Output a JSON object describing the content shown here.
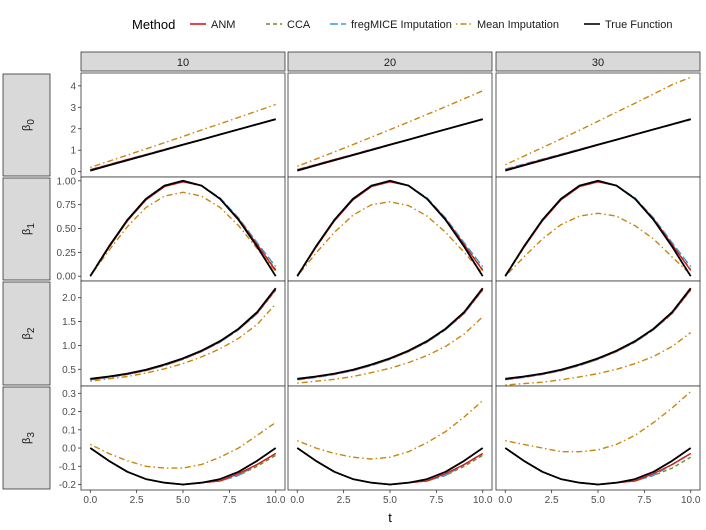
{
  "chart_data": {
    "type": "line",
    "legend": {
      "title": "Method",
      "position": "top",
      "entries": [
        {
          "name": "ANM",
          "color": "#d7191c",
          "dash": "solid"
        },
        {
          "name": "CCA",
          "color": "#6b8e23",
          "dash": "dashed"
        },
        {
          "name": "fregMICE Imputation",
          "color": "#3b9bd6",
          "dash": "longdash"
        },
        {
          "name": "Mean Imputation",
          "color": "#c8860d",
          "dash": "dotdash"
        },
        {
          "name": "True Function",
          "color": "#000000",
          "dash": "solid"
        }
      ]
    },
    "columns": [
      "10",
      "20",
      "30"
    ],
    "rows": [
      {
        "label": "β",
        "sub": "0",
        "ylim": [
          -0.25,
          4.6
        ],
        "yticks": [
          0,
          1,
          2,
          3,
          4
        ],
        "ytick_labels": [
          "0",
          "1",
          "2",
          "3",
          "4"
        ]
      },
      {
        "label": "β",
        "sub": "1",
        "ylim": [
          -0.05,
          1.04
        ],
        "yticks": [
          0,
          0.25,
          0.5,
          0.75,
          1.0
        ],
        "ytick_labels": [
          "0.00",
          "0.25",
          "0.50",
          "0.75",
          "1.00"
        ]
      },
      {
        "label": "β",
        "sub": "2",
        "ylim": [
          0.15,
          2.35
        ],
        "yticks": [
          0.5,
          1.0,
          1.5,
          2.0
        ],
        "ytick_labels": [
          "0.5",
          "1.0",
          "1.5",
          "2.0"
        ]
      },
      {
        "label": "β",
        "sub": "3",
        "ylim": [
          -0.23,
          0.34
        ],
        "yticks": [
          -0.2,
          -0.1,
          0.0,
          0.1,
          0.2,
          0.3
        ],
        "ytick_labels": [
          "-0.2",
          "-0.1",
          "0.0",
          "0.1",
          "0.2",
          "0.3"
        ]
      }
    ],
    "xlabel": "t",
    "xlim": [
      -0.5,
      10.5
    ],
    "xticks": [
      0,
      2.5,
      5,
      7.5,
      10
    ],
    "xtick_labels": [
      "0.0",
      "2.5",
      "5.0",
      "7.5",
      "10.0"
    ],
    "t": [
      0,
      1,
      2,
      3,
      4,
      5,
      6,
      7,
      8,
      9,
      10
    ],
    "series": [
      [
        {
          "True Function": [
            0.05,
            0.29,
            0.53,
            0.77,
            1.01,
            1.25,
            1.49,
            1.73,
            1.97,
            2.21,
            2.45
          ],
          "ANM": [
            0.08,
            0.32,
            0.56,
            0.79,
            1.03,
            1.27,
            1.5,
            1.74,
            1.97,
            2.2,
            2.43
          ],
          "CCA": [
            0.07,
            0.31,
            0.55,
            0.79,
            1.02,
            1.26,
            1.5,
            1.73,
            1.97,
            2.2,
            2.44
          ],
          "fregMICE Imputation": [
            0.1,
            0.33,
            0.57,
            0.8,
            1.04,
            1.27,
            1.5,
            1.74,
            1.97,
            2.21,
            2.44
          ],
          "Mean Imputation": [
            0.2,
            0.48,
            0.77,
            1.06,
            1.35,
            1.64,
            1.94,
            2.23,
            2.53,
            2.83,
            3.13
          ]
        },
        {
          "True Function": [
            0.05,
            0.29,
            0.53,
            0.77,
            1.01,
            1.25,
            1.49,
            1.73,
            1.97,
            2.21,
            2.45
          ],
          "ANM": [
            0.08,
            0.32,
            0.56,
            0.79,
            1.03,
            1.27,
            1.5,
            1.74,
            1.97,
            2.2,
            2.43
          ],
          "CCA": [
            0.07,
            0.31,
            0.55,
            0.79,
            1.02,
            1.26,
            1.5,
            1.73,
            1.97,
            2.2,
            2.44
          ],
          "fregMICE Imputation": [
            0.1,
            0.33,
            0.57,
            0.8,
            1.04,
            1.27,
            1.5,
            1.74,
            1.97,
            2.21,
            2.44
          ],
          "Mean Imputation": [
            0.25,
            0.58,
            0.92,
            1.26,
            1.61,
            1.96,
            2.31,
            2.67,
            3.03,
            3.4,
            3.77
          ]
        },
        {
          "True Function": [
            0.05,
            0.29,
            0.53,
            0.77,
            1.01,
            1.25,
            1.49,
            1.73,
            1.97,
            2.21,
            2.45
          ],
          "ANM": [
            0.08,
            0.32,
            0.56,
            0.79,
            1.03,
            1.27,
            1.5,
            1.74,
            1.97,
            2.2,
            2.43
          ],
          "CCA": [
            0.07,
            0.31,
            0.55,
            0.79,
            1.02,
            1.26,
            1.5,
            1.73,
            1.97,
            2.2,
            2.44
          ],
          "fregMICE Imputation": [
            0.12,
            0.35,
            0.58,
            0.81,
            1.04,
            1.27,
            1.5,
            1.73,
            1.96,
            2.19,
            2.42
          ],
          "Mean Imputation": [
            0.32,
            0.72,
            1.12,
            1.52,
            1.93,
            2.35,
            2.77,
            3.19,
            3.62,
            4.06,
            4.4
          ]
        }
      ],
      [
        {
          "True Function": [
            0.0,
            0.31,
            0.59,
            0.81,
            0.95,
            1.0,
            0.95,
            0.81,
            0.59,
            0.31,
            0.0
          ],
          "ANM": [
            0.0,
            0.3,
            0.58,
            0.8,
            0.94,
            0.99,
            0.95,
            0.81,
            0.6,
            0.33,
            0.06
          ],
          "CCA": [
            0.0,
            0.3,
            0.58,
            0.8,
            0.94,
            0.99,
            0.95,
            0.81,
            0.6,
            0.33,
            0.07
          ],
          "fregMICE Imputation": [
            0.01,
            0.31,
            0.59,
            0.8,
            0.94,
            0.99,
            0.95,
            0.82,
            0.61,
            0.35,
            0.1
          ],
          "Mean Imputation": [
            0.0,
            0.27,
            0.52,
            0.72,
            0.84,
            0.88,
            0.84,
            0.72,
            0.53,
            0.29,
            0.05
          ]
        },
        {
          "True Function": [
            0.0,
            0.31,
            0.59,
            0.81,
            0.95,
            1.0,
            0.95,
            0.81,
            0.59,
            0.31,
            0.0
          ],
          "ANM": [
            0.0,
            0.3,
            0.58,
            0.8,
            0.94,
            0.99,
            0.95,
            0.81,
            0.6,
            0.33,
            0.06
          ],
          "CCA": [
            0.0,
            0.3,
            0.58,
            0.8,
            0.94,
            0.99,
            0.95,
            0.81,
            0.6,
            0.33,
            0.07
          ],
          "fregMICE Imputation": [
            0.01,
            0.31,
            0.59,
            0.8,
            0.94,
            0.99,
            0.95,
            0.82,
            0.61,
            0.35,
            0.1
          ],
          "Mean Imputation": [
            0.0,
            0.24,
            0.46,
            0.64,
            0.75,
            0.78,
            0.74,
            0.63,
            0.46,
            0.25,
            0.03
          ]
        },
        {
          "True Function": [
            0.0,
            0.31,
            0.59,
            0.81,
            0.95,
            1.0,
            0.95,
            0.81,
            0.59,
            0.31,
            0.0
          ],
          "ANM": [
            0.0,
            0.3,
            0.58,
            0.8,
            0.94,
            0.99,
            0.95,
            0.81,
            0.6,
            0.33,
            0.06
          ],
          "CCA": [
            0.0,
            0.3,
            0.58,
            0.8,
            0.94,
            0.99,
            0.95,
            0.81,
            0.6,
            0.33,
            0.07
          ],
          "fregMICE Imputation": [
            0.01,
            0.31,
            0.59,
            0.8,
            0.94,
            0.99,
            0.95,
            0.82,
            0.61,
            0.35,
            0.1
          ],
          "Mean Imputation": [
            0.0,
            0.2,
            0.39,
            0.54,
            0.63,
            0.66,
            0.63,
            0.53,
            0.39,
            0.2,
            0.02
          ]
        }
      ],
      [
        {
          "True Function": [
            0.3,
            0.35,
            0.41,
            0.49,
            0.6,
            0.73,
            0.89,
            1.09,
            1.35,
            1.7,
            2.2
          ],
          "ANM": [
            0.29,
            0.34,
            0.4,
            0.48,
            0.59,
            0.72,
            0.88,
            1.08,
            1.34,
            1.68,
            2.17
          ],
          "CCA": [
            0.29,
            0.34,
            0.4,
            0.48,
            0.58,
            0.71,
            0.87,
            1.07,
            1.33,
            1.67,
            2.16
          ],
          "fregMICE Imputation": [
            0.28,
            0.33,
            0.39,
            0.47,
            0.58,
            0.71,
            0.87,
            1.07,
            1.33,
            1.67,
            2.17
          ],
          "Mean Imputation": [
            0.25,
            0.3,
            0.35,
            0.42,
            0.51,
            0.62,
            0.76,
            0.93,
            1.15,
            1.44,
            1.87
          ]
        },
        {
          "True Function": [
            0.3,
            0.35,
            0.41,
            0.49,
            0.6,
            0.73,
            0.89,
            1.09,
            1.35,
            1.7,
            2.2
          ],
          "ANM": [
            0.29,
            0.34,
            0.4,
            0.48,
            0.59,
            0.72,
            0.88,
            1.08,
            1.34,
            1.68,
            2.17
          ],
          "CCA": [
            0.29,
            0.34,
            0.4,
            0.48,
            0.58,
            0.71,
            0.87,
            1.07,
            1.33,
            1.67,
            2.16
          ],
          "fregMICE Imputation": [
            0.28,
            0.33,
            0.39,
            0.47,
            0.58,
            0.71,
            0.87,
            1.07,
            1.33,
            1.67,
            2.17
          ],
          "Mean Imputation": [
            0.21,
            0.25,
            0.29,
            0.35,
            0.43,
            0.52,
            0.64,
            0.79,
            0.98,
            1.24,
            1.6
          ]
        },
        {
          "True Function": [
            0.3,
            0.35,
            0.41,
            0.49,
            0.6,
            0.73,
            0.89,
            1.09,
            1.35,
            1.7,
            2.2
          ],
          "ANM": [
            0.29,
            0.34,
            0.4,
            0.48,
            0.59,
            0.72,
            0.88,
            1.08,
            1.34,
            1.68,
            2.17
          ],
          "CCA": [
            0.29,
            0.34,
            0.4,
            0.48,
            0.58,
            0.71,
            0.87,
            1.07,
            1.33,
            1.67,
            2.16
          ],
          "fregMICE Imputation": [
            0.28,
            0.33,
            0.39,
            0.47,
            0.58,
            0.71,
            0.87,
            1.07,
            1.33,
            1.67,
            2.17
          ],
          "Mean Imputation": [
            0.17,
            0.2,
            0.23,
            0.28,
            0.34,
            0.41,
            0.5,
            0.62,
            0.77,
            0.98,
            1.27
          ]
        }
      ],
      [
        {
          "True Function": [
            0.0,
            -0.07,
            -0.13,
            -0.17,
            -0.19,
            -0.2,
            -0.19,
            -0.17,
            -0.13,
            -0.07,
            0.0
          ],
          "ANM": [
            0.0,
            -0.07,
            -0.13,
            -0.17,
            -0.19,
            -0.2,
            -0.19,
            -0.18,
            -0.14,
            -0.09,
            -0.03
          ],
          "CCA": [
            0.0,
            -0.07,
            -0.13,
            -0.17,
            -0.19,
            -0.2,
            -0.19,
            -0.18,
            -0.15,
            -0.1,
            -0.04
          ],
          "fregMICE Imputation": [
            0.0,
            -0.07,
            -0.13,
            -0.17,
            -0.19,
            -0.2,
            -0.19,
            -0.18,
            -0.15,
            -0.09,
            -0.03
          ],
          "Mean Imputation": [
            0.02,
            -0.03,
            -0.07,
            -0.1,
            -0.11,
            -0.11,
            -0.09,
            -0.05,
            0.0,
            0.07,
            0.14
          ]
        },
        {
          "True Function": [
            0.0,
            -0.07,
            -0.13,
            -0.17,
            -0.19,
            -0.2,
            -0.19,
            -0.17,
            -0.13,
            -0.07,
            0.0
          ],
          "ANM": [
            0.0,
            -0.07,
            -0.13,
            -0.17,
            -0.19,
            -0.2,
            -0.19,
            -0.18,
            -0.14,
            -0.09,
            -0.03
          ],
          "CCA": [
            0.0,
            -0.07,
            -0.13,
            -0.17,
            -0.19,
            -0.2,
            -0.19,
            -0.18,
            -0.15,
            -0.1,
            -0.04
          ],
          "fregMICE Imputation": [
            0.0,
            -0.07,
            -0.13,
            -0.17,
            -0.19,
            -0.2,
            -0.19,
            -0.18,
            -0.15,
            -0.09,
            -0.03
          ],
          "Mean Imputation": [
            0.04,
            0.0,
            -0.03,
            -0.05,
            -0.06,
            -0.05,
            -0.02,
            0.03,
            0.09,
            0.17,
            0.26
          ]
        },
        {
          "True Function": [
            0.0,
            -0.07,
            -0.13,
            -0.17,
            -0.19,
            -0.2,
            -0.19,
            -0.17,
            -0.13,
            -0.07,
            0.0
          ],
          "ANM": [
            0.0,
            -0.07,
            -0.13,
            -0.17,
            -0.19,
            -0.2,
            -0.19,
            -0.18,
            -0.14,
            -0.09,
            -0.03
          ],
          "CCA": [
            0.0,
            -0.07,
            -0.13,
            -0.17,
            -0.19,
            -0.2,
            -0.19,
            -0.18,
            -0.15,
            -0.11,
            -0.05
          ],
          "fregMICE Imputation": [
            0.0,
            -0.07,
            -0.13,
            -0.17,
            -0.19,
            -0.2,
            -0.19,
            -0.18,
            -0.15,
            -0.09,
            -0.03
          ],
          "Mean Imputation": [
            0.04,
            0.02,
            0.0,
            -0.02,
            -0.02,
            -0.01,
            0.02,
            0.07,
            0.14,
            0.22,
            0.31
          ]
        }
      ]
    ]
  }
}
